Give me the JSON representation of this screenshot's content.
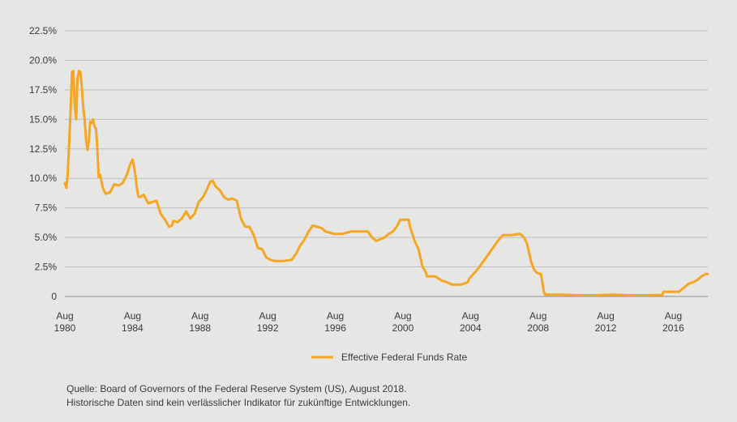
{
  "chart_data": {
    "type": "line",
    "title": "",
    "xlabel": "",
    "ylabel": "",
    "ylim": [
      0,
      22.5
    ],
    "xlim": [
      1980.58,
      2018.62
    ],
    "grid": true,
    "y_ticks": [
      {
        "value": 0,
        "label": "0"
      },
      {
        "value": 2.5,
        "label": "2.5%"
      },
      {
        "value": 5,
        "label": "5.0%"
      },
      {
        "value": 7.5,
        "label": "7.5%"
      },
      {
        "value": 10,
        "label": "10.0%"
      },
      {
        "value": 12.5,
        "label": "12.5%"
      },
      {
        "value": 15,
        "label": "15.0%"
      },
      {
        "value": 17.5,
        "label": "17.5%"
      },
      {
        "value": 20,
        "label": "20.0%"
      },
      {
        "value": 22.5,
        "label": "22.5%"
      }
    ],
    "x_ticks": [
      {
        "value": 1980.58,
        "month": "Aug",
        "year": "1980"
      },
      {
        "value": 1984.58,
        "month": "Aug",
        "year": "1984"
      },
      {
        "value": 1988.58,
        "month": "Aug",
        "year": "1988"
      },
      {
        "value": 1992.58,
        "month": "Aug",
        "year": "1992"
      },
      {
        "value": 1996.58,
        "month": "Aug",
        "year": "1996"
      },
      {
        "value": 2000.58,
        "month": "Aug",
        "year": "2000"
      },
      {
        "value": 2004.58,
        "month": "Aug",
        "year": "2004"
      },
      {
        "value": 2008.58,
        "month": "Aug",
        "year": "2008"
      },
      {
        "value": 2012.58,
        "month": "Aug",
        "year": "2012"
      },
      {
        "value": 2016.58,
        "month": "Aug",
        "year": "2016"
      }
    ],
    "legend_position": "bottom-center",
    "series": [
      {
        "name": "Effective Federal Funds Rate",
        "color": "#f5a623",
        "x": [
          1980.58,
          1980.67,
          1980.75,
          1980.83,
          1980.92,
          1981.0,
          1981.08,
          1981.17,
          1981.25,
          1981.33,
          1981.42,
          1981.5,
          1981.58,
          1981.67,
          1981.75,
          1981.83,
          1981.92,
          1982.0,
          1982.08,
          1982.17,
          1982.25,
          1982.33,
          1982.42,
          1982.5,
          1982.58,
          1982.67,
          1982.75,
          1982.83,
          1982.92,
          1983.0,
          1983.25,
          1983.5,
          1983.75,
          1984.0,
          1984.25,
          1984.42,
          1984.58,
          1984.67,
          1984.75,
          1984.83,
          1984.92,
          1985.0,
          1985.25,
          1985.5,
          1985.58,
          1985.75,
          1986.0,
          1986.25,
          1986.5,
          1986.75,
          1986.92,
          1987.0,
          1987.25,
          1987.5,
          1987.75,
          1987.92,
          1988.0,
          1988.25,
          1988.5,
          1988.75,
          1989.0,
          1989.17,
          1989.33,
          1989.5,
          1989.75,
          1990.0,
          1990.25,
          1990.5,
          1990.75,
          1991.0,
          1991.25,
          1991.5,
          1991.75,
          1992.0,
          1992.25,
          1992.5,
          1992.75,
          1993.0,
          1993.5,
          1994.0,
          1994.25,
          1994.5,
          1994.75,
          1995.0,
          1995.25,
          1995.5,
          1995.75,
          1996.0,
          1996.5,
          1997.0,
          1997.5,
          1998.0,
          1998.5,
          1998.75,
          1999.0,
          1999.5,
          1999.75,
          2000.0,
          2000.25,
          2000.42,
          2000.58,
          2000.75,
          2000.92,
          2001.0,
          2001.25,
          2001.5,
          2001.75,
          2001.92,
          2002.0,
          2002.5,
          2002.92,
          2003.0,
          2003.5,
          2003.92,
          2004.0,
          2004.42,
          2004.5,
          2004.75,
          2005.0,
          2005.25,
          2005.5,
          2005.75,
          2006.0,
          2006.25,
          2006.5,
          2007.0,
          2007.5,
          2007.75,
          2007.92,
          2008.0,
          2008.17,
          2008.33,
          2008.5,
          2008.75,
          2008.92,
          2009.0,
          2010.0,
          2011.0,
          2012.0,
          2013.0,
          2014.0,
          2015.0,
          2015.92,
          2016.0,
          2016.5,
          2016.92,
          2017.0,
          2017.17,
          2017.5,
          2017.75,
          2018.0,
          2018.25,
          2018.5,
          2018.62
        ],
        "values": [
          9.6,
          9.2,
          10.3,
          12.8,
          15.8,
          19.0,
          19.1,
          15.9,
          15.0,
          18.5,
          19.1,
          19.0,
          17.8,
          16.0,
          15.0,
          13.3,
          12.4,
          13.2,
          14.8,
          14.7,
          15.0,
          14.4,
          14.2,
          12.6,
          10.1,
          10.3,
          9.7,
          9.2,
          8.9,
          8.7,
          8.8,
          9.5,
          9.4,
          9.6,
          10.3,
          11.1,
          11.6,
          11.0,
          10.3,
          9.3,
          8.5,
          8.4,
          8.6,
          7.9,
          7.9,
          8.0,
          8.1,
          7.0,
          6.5,
          5.9,
          6.0,
          6.4,
          6.3,
          6.6,
          7.2,
          6.8,
          6.6,
          7.0,
          8.0,
          8.4,
          9.1,
          9.7,
          9.8,
          9.3,
          9.0,
          8.4,
          8.2,
          8.3,
          8.1,
          6.6,
          5.9,
          5.9,
          5.2,
          4.1,
          4.0,
          3.3,
          3.1,
          3.0,
          3.0,
          3.1,
          3.6,
          4.3,
          4.8,
          5.5,
          6.0,
          5.9,
          5.8,
          5.5,
          5.3,
          5.3,
          5.5,
          5.5,
          5.5,
          5.0,
          4.7,
          5.0,
          5.3,
          5.5,
          6.0,
          6.5,
          6.5,
          6.5,
          6.5,
          5.9,
          4.8,
          4.0,
          2.5,
          2.1,
          1.7,
          1.7,
          1.3,
          1.3,
          1.0,
          1.0,
          1.0,
          1.2,
          1.5,
          1.9,
          2.3,
          2.8,
          3.3,
          3.8,
          4.3,
          4.8,
          5.2,
          5.2,
          5.3,
          5.0,
          4.5,
          4.0,
          2.9,
          2.3,
          2.0,
          1.9,
          0.4,
          0.15,
          0.15,
          0.1,
          0.1,
          0.15,
          0.1,
          0.1,
          0.13,
          0.4,
          0.4,
          0.4,
          0.5,
          0.7,
          1.1,
          1.2,
          1.4,
          1.7,
          1.9,
          1.9
        ]
      }
    ]
  },
  "source_lines": [
    "Quelle: Board of Governors of the Federal Reserve System (US), August 2018.",
    "Historische Daten sind kein verlässlicher Indikator für zukünftige Entwicklungen."
  ]
}
